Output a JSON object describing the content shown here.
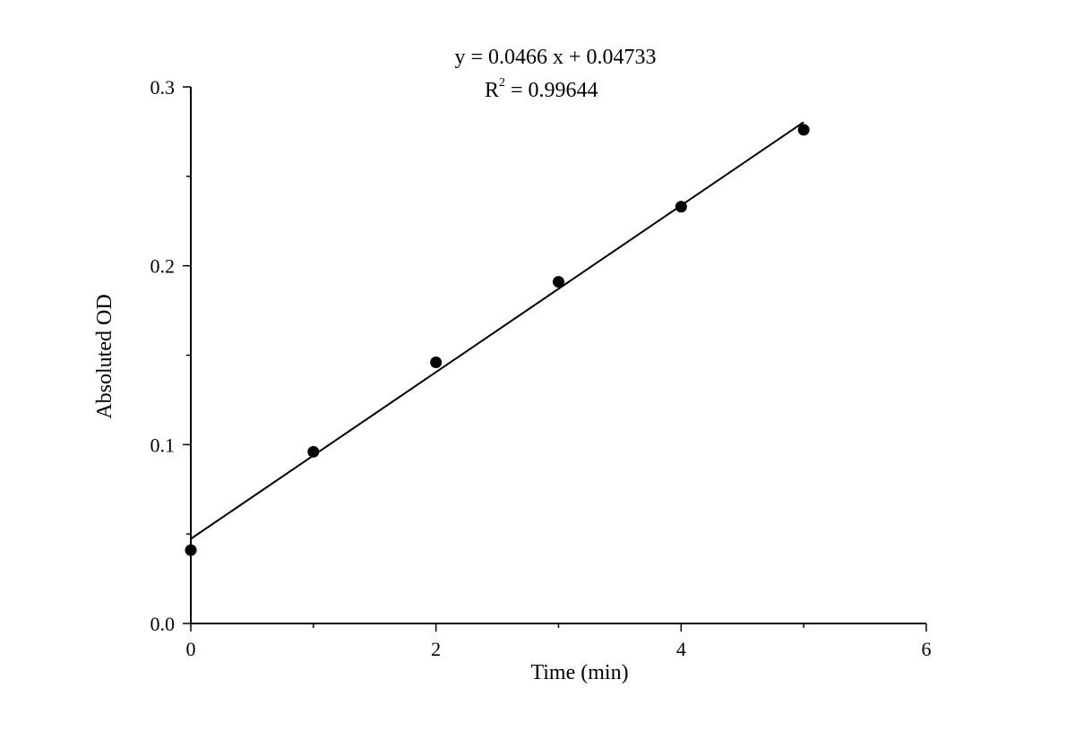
{
  "chart_data": {
    "type": "scatter",
    "title": "",
    "xlabel": "Time (min)",
    "ylabel": "Absoluted OD",
    "xlim": [
      0,
      6
    ],
    "ylim": [
      0,
      0.3
    ],
    "x_ticks": [
      0,
      2,
      4,
      6
    ],
    "x_tick_labels": [
      "0",
      "2",
      "4",
      "6"
    ],
    "x_minor_ticks": [
      1,
      3,
      5
    ],
    "y_ticks": [
      0,
      0.1,
      0.2,
      0.3
    ],
    "y_tick_labels": [
      "0.0",
      "0.1",
      "0.2",
      "0.3"
    ],
    "y_minor_ticks": [
      0.05,
      0.15,
      0.25
    ],
    "grid": false,
    "series": [
      {
        "x": [
          0,
          1,
          2,
          3,
          4,
          5
        ],
        "y": [
          0.041,
          0.096,
          0.146,
          0.191,
          0.233,
          0.276
        ]
      }
    ],
    "fit": {
      "slope": 0.0466,
      "intercept": 0.04733,
      "x_range": [
        0,
        5
      ],
      "equation": "y = 0.0466 x + 0.04733",
      "r2_prefix": "R",
      "r2_sup": "2",
      "r2_value": " = 0.99644"
    }
  }
}
